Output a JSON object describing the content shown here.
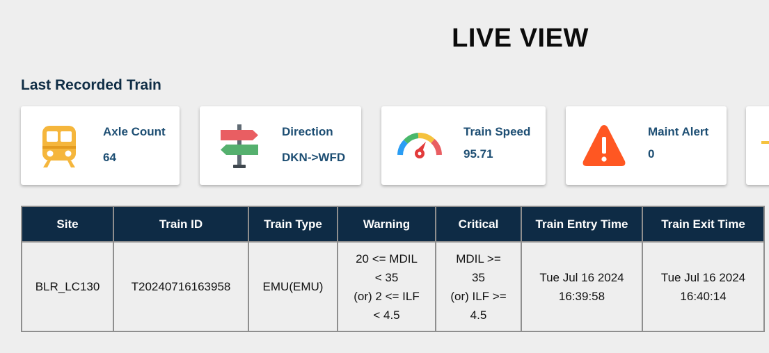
{
  "header": {
    "title": "LIVE VIEW"
  },
  "section": {
    "title": "Last Recorded Train"
  },
  "cards": [
    {
      "label": "Axle Count",
      "value": "64",
      "icon": "train-icon"
    },
    {
      "label": "Direction",
      "value": "DKN->WFD",
      "icon": "signpost-icon"
    },
    {
      "label": "Train Speed",
      "value": "95.71",
      "icon": "speedometer-icon"
    },
    {
      "label": "Maint Alert",
      "value": "0",
      "icon": "warning-icon"
    }
  ],
  "colors": {
    "card_text": "#1d4e73",
    "table_header_bg": "#0e2b45",
    "train_icon": "#f5b63c",
    "warning_icon": "#ff5722"
  },
  "table": {
    "headers": [
      "Site",
      "Train ID",
      "Train Type",
      "Warning",
      "Critical",
      "Train Entry Time",
      "Train Exit Time"
    ],
    "row": {
      "site": "BLR_LC130",
      "train_id": "T20240716163958",
      "train_type": "EMU(EMU)",
      "warning": {
        "line1": "20 <= MDIL",
        "line2": "< 35",
        "line3": "(or) 2 <= ILF",
        "line4": "< 4.5"
      },
      "critical": {
        "line1": "MDIL >=",
        "line2": "35",
        "line3": "(or) ILF >=",
        "line4": "4.5"
      },
      "entry_time": {
        "date": "Tue Jul 16 2024",
        "time": "16:39:58"
      },
      "exit_time": {
        "date": "Tue Jul 16 2024",
        "time": "16:40:14"
      }
    }
  }
}
